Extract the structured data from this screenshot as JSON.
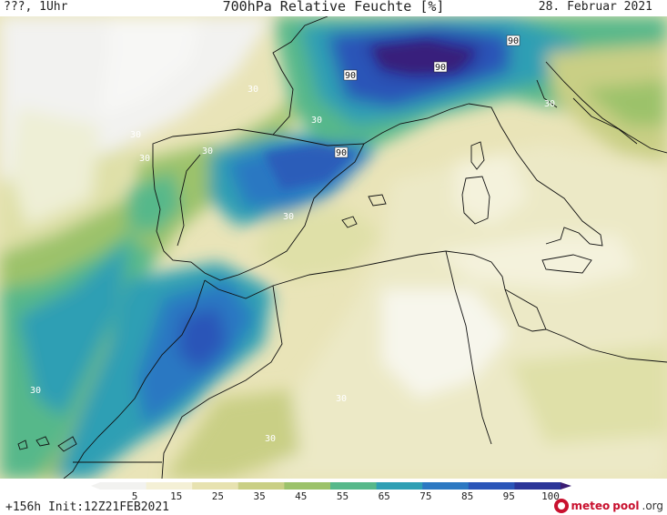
{
  "header": {
    "left": "???, 1Uhr",
    "title": "700hPa Relative Feuchte [%]",
    "date": "28. Februar 2021"
  },
  "footer": {
    "run": "+156h Init:12Z21FEB2021",
    "brand_a": "meteo",
    "brand_b": "pool",
    "brand_c": ".org"
  },
  "legend": {
    "ticks": [
      "5",
      "15",
      "25",
      "35",
      "45",
      "55",
      "65",
      "75",
      "85",
      "95",
      "100"
    ],
    "colors": [
      "#f2f2f0",
      "#f4f0d6",
      "#e7e2b0",
      "#c9cf85",
      "#9cc26a",
      "#56b88a",
      "#2f9fb4",
      "#2c78c2",
      "#2a55b8",
      "#2b3598",
      "#3b1d74"
    ]
  },
  "contour_labels": [
    {
      "id": "30a",
      "text": "30"
    },
    {
      "id": "30b",
      "text": "30"
    },
    {
      "id": "30c",
      "text": "30"
    },
    {
      "id": "30d",
      "text": "30"
    },
    {
      "id": "30e",
      "text": "30"
    },
    {
      "id": "30f",
      "text": "30"
    },
    {
      "id": "30g",
      "text": "30"
    },
    {
      "id": "30h",
      "text": "30"
    },
    {
      "id": "30i",
      "text": "30"
    },
    {
      "id": "30j",
      "text": "30"
    },
    {
      "id": "90a",
      "text": "90"
    },
    {
      "id": "90b",
      "text": "90"
    },
    {
      "id": "90c",
      "text": "90"
    },
    {
      "id": "90d",
      "text": "90"
    }
  ]
}
